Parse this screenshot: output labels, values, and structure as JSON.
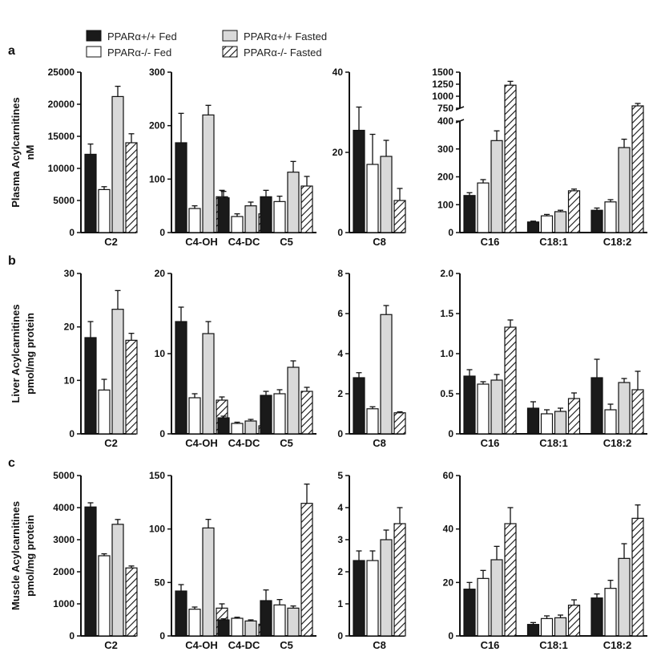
{
  "legend": {
    "items": [
      {
        "label": "PPARα+/+ Fed",
        "style": "fed_wt"
      },
      {
        "label": "PPARα-/- Fed",
        "style": "fed_ko"
      },
      {
        "label": "PPARα+/+ Fasted",
        "style": "fast_wt"
      },
      {
        "label": "PPARα-/- Fasted",
        "style": "fast_ko"
      }
    ]
  },
  "colors": {
    "fed_wt": "#1a1a1a",
    "fed_ko": "#ffffff",
    "fast_wt": "#d9d9d9",
    "fast_ko": "#ffffff",
    "axis": "#111111"
  },
  "rows": [
    {
      "panel_label": "a",
      "ylabel_lines": [
        "Plasma Acylcarnitines",
        "nM"
      ]
    },
    {
      "panel_label": "b",
      "ylabel_lines": [
        "Liver Acylcarnitines",
        "pmol/mg protein"
      ]
    },
    {
      "panel_label": "c",
      "ylabel_lines": [
        "Muscle Acylcarnitines",
        "pmol/mg protein"
      ]
    }
  ],
  "chart_data": [
    {
      "type": "bar",
      "panel": "a1",
      "categories": [
        "C2"
      ],
      "ylim": [
        0,
        25000
      ],
      "yticks": [
        "0",
        "5000",
        "10000",
        "15000",
        "20000",
        "25000"
      ],
      "series": [
        {
          "name": "PPARα+/+ Fed",
          "values": [
            12200
          ],
          "errors": [
            1600
          ]
        },
        {
          "name": "PPARα-/- Fed",
          "values": [
            6700
          ],
          "errors": [
            450
          ]
        },
        {
          "name": "PPARα+/+ Fasted",
          "values": [
            21200
          ],
          "errors": [
            1600
          ]
        },
        {
          "name": "PPARα-/- Fasted",
          "values": [
            14000
          ],
          "errors": [
            1400
          ]
        }
      ]
    },
    {
      "type": "bar",
      "panel": "a2",
      "categories": [
        "C4-OH",
        "C4-DC",
        "C5"
      ],
      "ylim": [
        0,
        300
      ],
      "yticks": [
        "0",
        "100",
        "200",
        "300"
      ],
      "series": [
        {
          "name": "PPARα+/+ Fed",
          "values": [
            168,
            65,
            67
          ],
          "errors": [
            55,
            12,
            12
          ]
        },
        {
          "name": "PPARα-/- Fed",
          "values": [
            45,
            30,
            58
          ],
          "errors": [
            5,
            5,
            10
          ]
        },
        {
          "name": "PPARα+/+ Fasted",
          "values": [
            220,
            50,
            113
          ],
          "errors": [
            18,
            7,
            20
          ]
        },
        {
          "name": "PPARα-/- Fasted",
          "values": [
            67,
            35,
            87
          ],
          "errors": [
            12,
            8,
            18
          ]
        }
      ]
    },
    {
      "type": "bar",
      "panel": "a3",
      "categories": [
        "C8"
      ],
      "ylim": [
        0,
        40
      ],
      "yticks": [
        "0",
        "20",
        "40"
      ],
      "series": [
        {
          "name": "PPARα+/+ Fed",
          "values": [
            25.5
          ],
          "errors": [
            5.8
          ]
        },
        {
          "name": "PPARα-/- Fed",
          "values": [
            17
          ],
          "errors": [
            7.5
          ]
        },
        {
          "name": "PPARα+/+ Fasted",
          "values": [
            19
          ],
          "errors": [
            4
          ]
        },
        {
          "name": "PPARα-/- Fasted",
          "values": [
            8
          ],
          "errors": [
            3
          ]
        }
      ]
    },
    {
      "type": "bar",
      "panel": "a4",
      "categories": [
        "C16",
        "C18:1",
        "C18:2"
      ],
      "ylim": [
        0,
        1500
      ],
      "yticks": [
        "0",
        "100",
        "200",
        "300",
        "400",
        "750",
        "1000",
        "1250",
        "1500"
      ],
      "axis_break": {
        "lower": [
          0,
          400
        ],
        "upper": [
          750,
          1500
        ]
      },
      "series": [
        {
          "name": "PPARα+/+ Fed",
          "values": [
            133,
            38,
            80
          ],
          "errors": [
            10,
            3,
            8
          ]
        },
        {
          "name": "PPARα-/- Fed",
          "values": [
            178,
            60,
            110
          ],
          "errors": [
            12,
            5,
            8
          ]
        },
        {
          "name": "PPARα+/+ Fasted",
          "values": [
            330,
            75,
            305
          ],
          "errors": [
            35,
            5,
            30
          ]
        },
        {
          "name": "PPARα-/- Fasted",
          "values": [
            1230,
            150,
            800
          ],
          "errors": [
            80,
            6,
            50
          ]
        }
      ]
    },
    {
      "type": "bar",
      "panel": "b1",
      "categories": [
        "C2"
      ],
      "ylim": [
        0,
        30
      ],
      "yticks": [
        "0",
        "10",
        "20",
        "30"
      ],
      "series": [
        {
          "name": "PPARα+/+ Fed",
          "values": [
            18
          ],
          "errors": [
            3
          ]
        },
        {
          "name": "PPARα-/- Fed",
          "values": [
            8.2
          ],
          "errors": [
            2
          ]
        },
        {
          "name": "PPARα+/+ Fasted",
          "values": [
            23.3
          ],
          "errors": [
            3.5
          ]
        },
        {
          "name": "PPARα-/- Fasted",
          "values": [
            17.5
          ],
          "errors": [
            1.3
          ]
        }
      ]
    },
    {
      "type": "bar",
      "panel": "b2",
      "categories": [
        "C4-OH",
        "C4-DC",
        "C5"
      ],
      "ylim": [
        0,
        20
      ],
      "yticks": [
        "0",
        "10",
        "20"
      ],
      "series": [
        {
          "name": "PPARα+/+ Fed",
          "values": [
            14,
            2.0,
            4.8
          ],
          "errors": [
            1.8,
            0.2,
            0.5
          ]
        },
        {
          "name": "PPARα-/- Fed",
          "values": [
            4.5,
            1.3,
            5.0
          ],
          "errors": [
            0.5,
            0.15,
            0.5
          ]
        },
        {
          "name": "PPARα+/+ Fasted",
          "values": [
            12.5,
            1.6,
            8.3
          ],
          "errors": [
            1.5,
            0.2,
            0.8
          ]
        },
        {
          "name": "PPARα-/- Fasted",
          "values": [
            4.2,
            1.0,
            5.3
          ],
          "errors": [
            0.4,
            0.15,
            0.5
          ]
        }
      ]
    },
    {
      "type": "bar",
      "panel": "b3",
      "categories": [
        "C8"
      ],
      "ylim": [
        0,
        8
      ],
      "yticks": [
        "0",
        "2",
        "4",
        "6",
        "8"
      ],
      "series": [
        {
          "name": "PPARα+/+ Fed",
          "values": [
            2.8
          ],
          "errors": [
            0.25
          ]
        },
        {
          "name": "PPARα-/- Fed",
          "values": [
            1.25
          ],
          "errors": [
            0.1
          ]
        },
        {
          "name": "PPARα+/+ Fasted",
          "values": [
            5.95
          ],
          "errors": [
            0.45
          ]
        },
        {
          "name": "PPARα-/- Fasted",
          "values": [
            1.05
          ],
          "errors": [
            0.05
          ]
        }
      ]
    },
    {
      "type": "bar",
      "panel": "b4",
      "categories": [
        "C16",
        "C18:1",
        "C18:2"
      ],
      "ylim": [
        0,
        2.0
      ],
      "yticks": [
        "0",
        "0.5",
        "1.0",
        "1.5",
        "2.0"
      ],
      "series": [
        {
          "name": "PPARα+/+ Fed",
          "values": [
            0.72,
            0.32,
            0.7
          ],
          "errors": [
            0.08,
            0.08,
            0.23
          ]
        },
        {
          "name": "PPARα-/- Fed",
          "values": [
            0.62,
            0.25,
            0.3
          ],
          "errors": [
            0.03,
            0.05,
            0.07
          ]
        },
        {
          "name": "PPARα+/+ Fasted",
          "values": [
            0.67,
            0.28,
            0.64
          ],
          "errors": [
            0.07,
            0.04,
            0.05
          ]
        },
        {
          "name": "PPARα-/- Fasted",
          "values": [
            1.33,
            0.44,
            0.55
          ],
          "errors": [
            0.09,
            0.07,
            0.23
          ]
        }
      ]
    },
    {
      "type": "bar",
      "panel": "c1",
      "categories": [
        "C2"
      ],
      "ylim": [
        0,
        5000
      ],
      "yticks": [
        "0",
        "1000",
        "2000",
        "3000",
        "4000",
        "5000"
      ],
      "series": [
        {
          "name": "PPARα+/+ Fed",
          "values": [
            4020
          ],
          "errors": [
            130
          ]
        },
        {
          "name": "PPARα-/- Fed",
          "values": [
            2500
          ],
          "errors": [
            60
          ]
        },
        {
          "name": "PPARα+/+ Fasted",
          "values": [
            3480
          ],
          "errors": [
            150
          ]
        },
        {
          "name": "PPARα-/- Fasted",
          "values": [
            2120
          ],
          "errors": [
            60
          ]
        }
      ]
    },
    {
      "type": "bar",
      "panel": "c2",
      "categories": [
        "C4-OH",
        "C4-DC",
        "C5"
      ],
      "ylim": [
        0,
        150
      ],
      "yticks": [
        "0",
        "50",
        "100",
        "150"
      ],
      "series": [
        {
          "name": "PPARα+/+ Fed",
          "values": [
            42,
            15,
            33
          ],
          "errors": [
            6,
            1,
            10
          ]
        },
        {
          "name": "PPARα-/- Fed",
          "values": [
            25,
            16.5,
            29
          ],
          "errors": [
            2,
            1,
            5
          ]
        },
        {
          "name": "PPARα+/+ Fasted",
          "values": [
            101,
            14,
            26
          ],
          "errors": [
            8,
            1,
            2
          ]
        },
        {
          "name": "PPARα-/- Fasted",
          "values": [
            26,
            11,
            124
          ],
          "errors": [
            4,
            1,
            18
          ]
        }
      ]
    },
    {
      "type": "bar",
      "panel": "c3",
      "categories": [
        "C8"
      ],
      "ylim": [
        0,
        5
      ],
      "yticks": [
        "0",
        "1",
        "2",
        "3",
        "4",
        "5"
      ],
      "series": [
        {
          "name": "PPARα+/+ Fed",
          "values": [
            2.35
          ],
          "errors": [
            0.3
          ]
        },
        {
          "name": "PPARα-/- Fed",
          "values": [
            2.35
          ],
          "errors": [
            0.3
          ]
        },
        {
          "name": "PPARα+/+ Fasted",
          "values": [
            3.0
          ],
          "errors": [
            0.3
          ]
        },
        {
          "name": "PPARα-/- Fasted",
          "values": [
            3.5
          ],
          "errors": [
            0.5
          ]
        }
      ]
    },
    {
      "type": "bar",
      "panel": "c4",
      "categories": [
        "C16",
        "C18:1",
        "C18:2"
      ],
      "ylim": [
        0,
        60
      ],
      "yticks": [
        "0",
        "20",
        "40",
        "60"
      ],
      "series": [
        {
          "name": "PPARα+/+ Fed",
          "values": [
            17.5,
            4.3,
            14.2
          ],
          "errors": [
            2.5,
            0.7,
            1.5
          ]
        },
        {
          "name": "PPARα-/- Fed",
          "values": [
            21.5,
            6.5,
            17.8
          ],
          "errors": [
            3,
            1,
            3
          ]
        },
        {
          "name": "PPARα+/+ Fasted",
          "values": [
            28.5,
            6.8,
            29
          ],
          "errors": [
            5,
            1,
            5.5
          ]
        },
        {
          "name": "PPARα-/- Fasted",
          "values": [
            42,
            11.5,
            44
          ],
          "errors": [
            6,
            2,
            5
          ]
        }
      ]
    }
  ]
}
